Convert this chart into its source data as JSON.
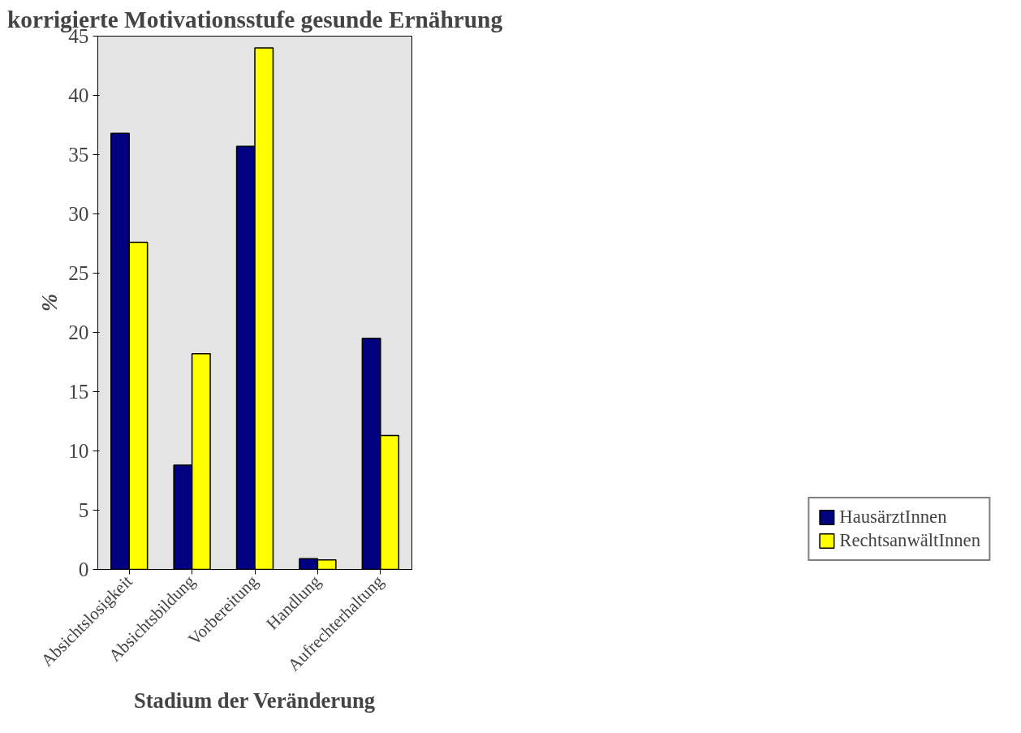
{
  "chart_data": {
    "type": "bar",
    "title": "korrigierte Motivationsstufe gesunde Ernährung",
    "xlabel": "Stadium der Veränderung",
    "ylabel": "%",
    "categories": [
      "Absichtslosigkeit",
      "Absichtsbildung",
      "Vorbereitung",
      "Handlung",
      "Aufrechterhaltung"
    ],
    "series": [
      {
        "name": "HausärztInnen",
        "color": "#000080",
        "values": [
          36.8,
          8.8,
          35.7,
          0.9,
          19.5
        ]
      },
      {
        "name": "RechtsanwältInnen",
        "color": "#ffff00",
        "values": [
          27.6,
          18.2,
          44.0,
          0.8,
          11.3
        ]
      }
    ],
    "ylim": [
      0,
      45
    ],
    "yticks": [
      0,
      5,
      10,
      15,
      20,
      25,
      30,
      35,
      40,
      45
    ],
    "grid": false,
    "legend": "bottom right"
  }
}
